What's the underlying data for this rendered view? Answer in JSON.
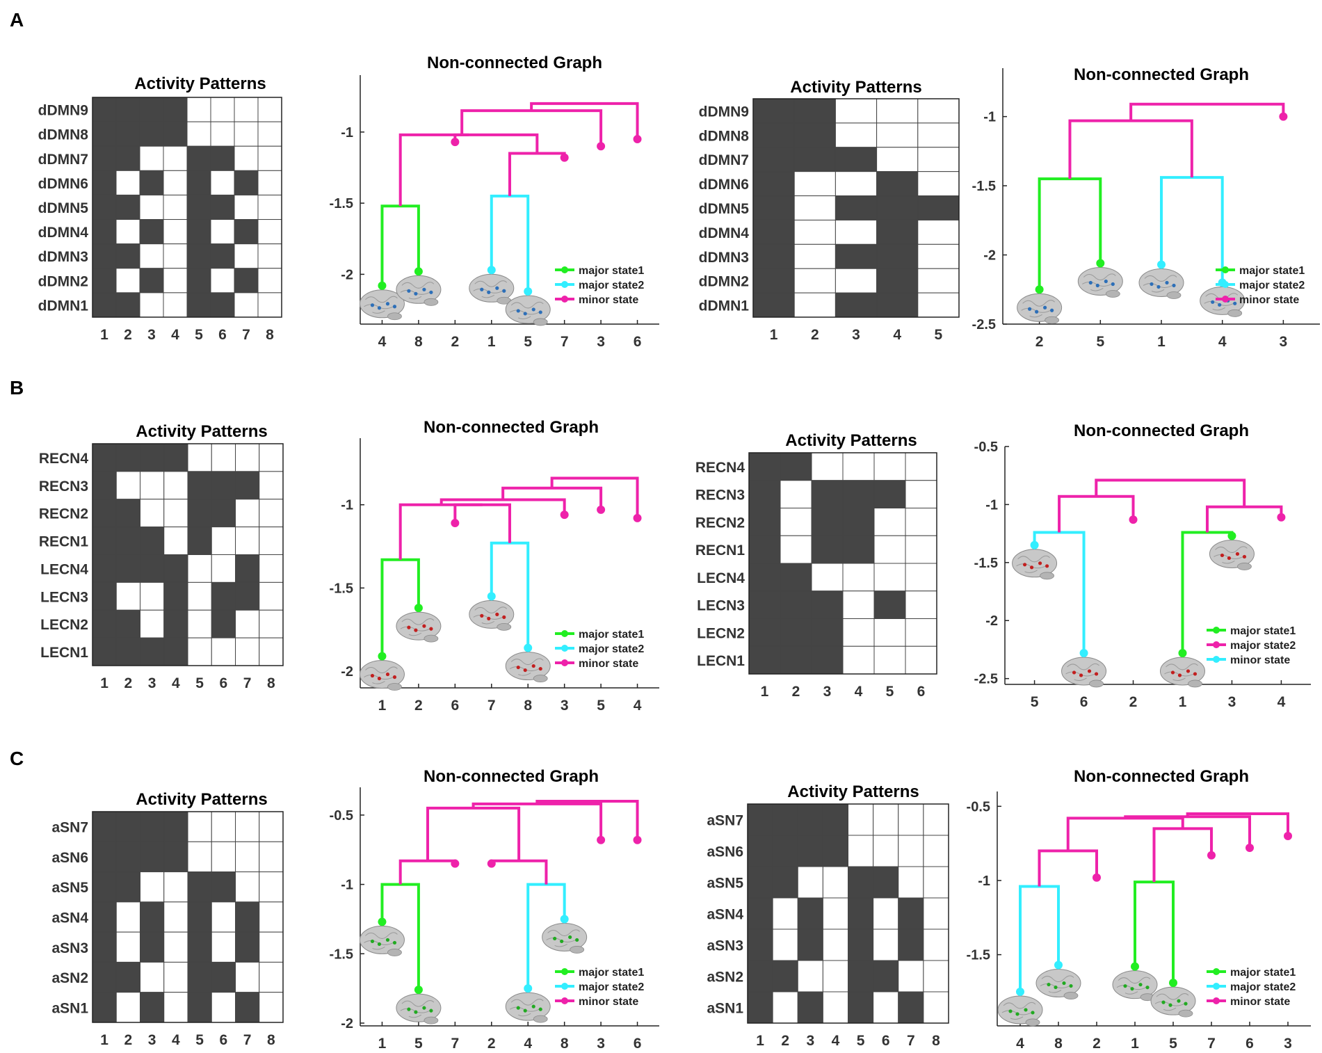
{
  "panel_labels": [
    "A",
    "B",
    "C"
  ],
  "legend_labels_default": [
    "major state1",
    "major state2",
    "minor state"
  ],
  "legend_labels_B_right": [
    "major state1",
    "major state2",
    "minor state"
  ],
  "colors": {
    "major_state1": "#22ee22",
    "major_state2": "#33eeff",
    "minor_state": "#ee22aa",
    "filled_cell": "#454545",
    "grid": "#444444",
    "brain": "#c8c8c8"
  },
  "chart_data": [
    {
      "type": "heatmap",
      "panel": "A",
      "title": "Activity Patterns",
      "rows": [
        "dDMN9",
        "dDMN8",
        "dDMN7",
        "dDMN6",
        "dDMN5",
        "dDMN4",
        "dDMN3",
        "dDMN2",
        "dDMN1"
      ],
      "columns": [
        "1",
        "2",
        "3",
        "4",
        "5",
        "6",
        "7",
        "8"
      ],
      "values": [
        [
          1,
          1,
          1,
          1,
          0,
          0,
          0,
          0
        ],
        [
          1,
          1,
          1,
          1,
          0,
          0,
          0,
          0
        ],
        [
          1,
          1,
          0,
          0,
          1,
          1,
          0,
          0
        ],
        [
          1,
          0,
          1,
          0,
          1,
          0,
          1,
          0
        ],
        [
          1,
          1,
          0,
          0,
          1,
          1,
          0,
          0
        ],
        [
          1,
          0,
          1,
          0,
          1,
          0,
          1,
          0
        ],
        [
          1,
          1,
          0,
          0,
          1,
          1,
          0,
          0
        ],
        [
          1,
          0,
          1,
          0,
          1,
          0,
          1,
          0
        ],
        [
          1,
          1,
          0,
          0,
          1,
          1,
          0,
          0
        ]
      ]
    },
    {
      "type": "dendrogram",
      "panel": "A",
      "title": "Non-connected Graph",
      "ylim": [
        -2.35,
        -0.6
      ],
      "yticks": [
        -1,
        -1.5,
        -2
      ],
      "leaf_labels": [
        "4",
        "8",
        "2",
        "1",
        "5",
        "7",
        "3",
        "6"
      ],
      "leaves": [
        {
          "y": -2.08,
          "c": "g",
          "brain": true
        },
        {
          "y": -1.98,
          "c": "g",
          "brain": true
        },
        {
          "y": -1.07,
          "c": "m",
          "brain": false
        },
        {
          "y": -1.97,
          "c": "c",
          "brain": true
        },
        {
          "y": -2.12,
          "c": "c",
          "brain": true
        },
        {
          "y": -1.18,
          "c": "m",
          "brain": false
        },
        {
          "y": -1.1,
          "c": "m",
          "brain": false
        },
        {
          "y": -1.05,
          "c": "m",
          "brain": false
        }
      ],
      "merges": [
        {
          "a": "L0",
          "b": "L1",
          "y": -1.52,
          "c": "g"
        },
        {
          "a": "L3",
          "b": "L4",
          "y": -1.45,
          "c": "c"
        },
        {
          "a": "M1",
          "b": "L5",
          "y": -1.15,
          "c": "m"
        },
        {
          "a": "M0",
          "b": "M2",
          "y": -1.02,
          "c": "m"
        },
        {
          "a": "M3",
          "b": "L2",
          "y": -1.02,
          "c": "m"
        },
        {
          "a": "M4",
          "b": "L6",
          "y": -0.85,
          "c": "m"
        },
        {
          "a": "M5",
          "b": "L7",
          "y": -0.8,
          "c": "m"
        }
      ],
      "legend": [
        "g",
        "c",
        "m"
      ]
    },
    {
      "type": "heatmap",
      "panel": "A",
      "title": "Activity Patterns",
      "rows": [
        "dDMN9",
        "dDMN8",
        "dDMN7",
        "dDMN6",
        "dDMN5",
        "dDMN4",
        "dDMN3",
        "dDMN2",
        "dDMN1"
      ],
      "columns": [
        "1",
        "2",
        "3",
        "4",
        "5"
      ],
      "values": [
        [
          1,
          1,
          0,
          0,
          0
        ],
        [
          1,
          1,
          0,
          0,
          0
        ],
        [
          1,
          1,
          1,
          0,
          0
        ],
        [
          1,
          0,
          0,
          1,
          0
        ],
        [
          1,
          0,
          1,
          1,
          1
        ],
        [
          1,
          0,
          0,
          1,
          0
        ],
        [
          1,
          0,
          1,
          1,
          0
        ],
        [
          1,
          0,
          0,
          1,
          0
        ],
        [
          1,
          0,
          1,
          1,
          0
        ]
      ]
    },
    {
      "type": "dendrogram",
      "panel": "A",
      "title": "Non-connected Graph",
      "ylim": [
        -2.5,
        -0.65
      ],
      "yticks": [
        -1,
        -1.5,
        -2,
        -2.5
      ],
      "leaf_labels": [
        "2",
        "5",
        "1",
        "4",
        "3"
      ],
      "leaves": [
        {
          "y": -2.25,
          "c": "g",
          "brain": true
        },
        {
          "y": -2.06,
          "c": "g",
          "brain": true
        },
        {
          "y": -2.07,
          "c": "c",
          "brain": true
        },
        {
          "y": -2.2,
          "c": "c",
          "brain": true
        },
        {
          "y": -1.0,
          "c": "m",
          "brain": false
        }
      ],
      "merges": [
        {
          "a": "L0",
          "b": "L1",
          "y": -1.45,
          "c": "g"
        },
        {
          "a": "L2",
          "b": "L3",
          "y": -1.44,
          "c": "c"
        },
        {
          "a": "M0",
          "b": "M1",
          "y": -1.03,
          "c": "m"
        },
        {
          "a": "M2",
          "b": "L4",
          "y": -0.91,
          "c": "m"
        }
      ],
      "legend": [
        "g",
        "c",
        "m"
      ]
    },
    {
      "type": "heatmap",
      "panel": "B",
      "title": "Activity Patterns",
      "rows": [
        "RECN4",
        "RECN3",
        "RECN2",
        "RECN1",
        "LECN4",
        "LECN3",
        "LECN2",
        "LECN1"
      ],
      "columns": [
        "1",
        "2",
        "3",
        "4",
        "5",
        "6",
        "7",
        "8"
      ],
      "values": [
        [
          1,
          1,
          1,
          1,
          0,
          0,
          0,
          0
        ],
        [
          1,
          0,
          0,
          0,
          1,
          1,
          1,
          0
        ],
        [
          1,
          1,
          0,
          0,
          1,
          1,
          0,
          0
        ],
        [
          1,
          1,
          1,
          0,
          1,
          0,
          0,
          0
        ],
        [
          1,
          1,
          1,
          1,
          0,
          0,
          1,
          0
        ],
        [
          1,
          0,
          0,
          1,
          0,
          1,
          1,
          0
        ],
        [
          1,
          1,
          0,
          1,
          0,
          1,
          0,
          0
        ],
        [
          1,
          1,
          1,
          1,
          0,
          0,
          0,
          0
        ]
      ]
    },
    {
      "type": "dendrogram",
      "panel": "B",
      "title": "Non-connected Graph",
      "ylim": [
        -2.1,
        -0.6
      ],
      "yticks": [
        -1,
        -1.5,
        -2
      ],
      "leaf_labels": [
        "1",
        "2",
        "6",
        "7",
        "8",
        "3",
        "5",
        "4"
      ],
      "leaves": [
        {
          "y": -1.91,
          "c": "g",
          "brain": true
        },
        {
          "y": -1.62,
          "c": "g",
          "brain": true
        },
        {
          "y": -1.11,
          "c": "m",
          "brain": false
        },
        {
          "y": -1.55,
          "c": "c",
          "brain": true
        },
        {
          "y": -1.86,
          "c": "c",
          "brain": true
        },
        {
          "y": -1.06,
          "c": "m",
          "brain": false
        },
        {
          "y": -1.03,
          "c": "m",
          "brain": false
        },
        {
          "y": -1.08,
          "c": "m",
          "brain": false
        }
      ],
      "merges": [
        {
          "a": "L0",
          "b": "L1",
          "y": -1.33,
          "c": "g"
        },
        {
          "a": "L3",
          "b": "L4",
          "y": -1.23,
          "c": "c"
        },
        {
          "a": "M1",
          "b": "L2",
          "y": -1.0,
          "c": "m"
        },
        {
          "a": "M0",
          "b": "M2",
          "y": -1.0,
          "c": "m"
        },
        {
          "a": "M3",
          "b": "L5",
          "y": -0.97,
          "c": "m"
        },
        {
          "a": "M4",
          "b": "L6",
          "y": -0.9,
          "c": "m"
        },
        {
          "a": "M5",
          "b": "L7",
          "y": -0.84,
          "c": "m"
        }
      ],
      "legend": [
        "g",
        "c",
        "m"
      ]
    },
    {
      "type": "heatmap",
      "panel": "B",
      "title": "Activity Patterns",
      "rows": [
        "RECN4",
        "RECN3",
        "RECN2",
        "RECN1",
        "LECN4",
        "LECN3",
        "LECN2",
        "LECN1"
      ],
      "columns": [
        "1",
        "2",
        "3",
        "4",
        "5",
        "6"
      ],
      "values": [
        [
          1,
          1,
          0,
          0,
          0,
          0
        ],
        [
          1,
          0,
          1,
          1,
          1,
          0
        ],
        [
          1,
          0,
          1,
          1,
          0,
          0
        ],
        [
          1,
          0,
          1,
          1,
          0,
          0
        ],
        [
          1,
          1,
          0,
          0,
          0,
          0
        ],
        [
          1,
          1,
          1,
          0,
          1,
          0
        ],
        [
          1,
          1,
          1,
          0,
          0,
          0
        ],
        [
          1,
          1,
          1,
          0,
          0,
          0
        ]
      ]
    },
    {
      "type": "dendrogram",
      "panel": "B",
      "title": "Non-connected Graph",
      "ylim": [
        -2.55,
        -0.5
      ],
      "yticks": [
        -0.5,
        -1,
        -1.5,
        -2,
        -2.5
      ],
      "leaf_labels": [
        "5",
        "6",
        "2",
        "1",
        "3",
        "4"
      ],
      "leaves": [
        {
          "y": -1.35,
          "c": "c",
          "brain": true
        },
        {
          "y": -2.28,
          "c": "c",
          "brain": true
        },
        {
          "y": -1.13,
          "c": "m",
          "brain": false
        },
        {
          "y": -2.28,
          "c": "g",
          "brain": true
        },
        {
          "y": -1.27,
          "c": "g",
          "brain": true
        },
        {
          "y": -1.11,
          "c": "m",
          "brain": false
        }
      ],
      "merges": [
        {
          "a": "L0",
          "b": "L1",
          "y": -1.24,
          "c": "c"
        },
        {
          "a": "L3",
          "b": "L4",
          "y": -1.24,
          "c": "g"
        },
        {
          "a": "M0",
          "b": "L2",
          "y": -0.93,
          "c": "m"
        },
        {
          "a": "M1",
          "b": "L5",
          "y": -1.02,
          "c": "m"
        },
        {
          "a": "M2",
          "b": "M3",
          "y": -0.79,
          "c": "m"
        }
      ],
      "legend": [
        "g",
        "m",
        "c"
      ]
    },
    {
      "type": "heatmap",
      "panel": "C",
      "title": "Activity Patterns",
      "rows": [
        "aSN7",
        "aSN6",
        "aSN5",
        "aSN4",
        "aSN3",
        "aSN2",
        "aSN1"
      ],
      "columns": [
        "1",
        "2",
        "3",
        "4",
        "5",
        "6",
        "7",
        "8"
      ],
      "values": [
        [
          1,
          1,
          1,
          1,
          0,
          0,
          0,
          0
        ],
        [
          1,
          1,
          1,
          1,
          0,
          0,
          0,
          0
        ],
        [
          1,
          1,
          0,
          0,
          1,
          1,
          0,
          0
        ],
        [
          1,
          0,
          1,
          0,
          1,
          0,
          1,
          0
        ],
        [
          1,
          0,
          1,
          0,
          1,
          0,
          1,
          0
        ],
        [
          1,
          1,
          0,
          0,
          1,
          1,
          0,
          0
        ],
        [
          1,
          0,
          1,
          0,
          1,
          0,
          1,
          0
        ]
      ]
    },
    {
      "type": "dendrogram",
      "panel": "C",
      "title": "Non-connected Graph",
      "ylim": [
        -2.02,
        -0.3
      ],
      "yticks": [
        -0.5,
        -1,
        -1.5,
        -2
      ],
      "leaf_labels": [
        "1",
        "5",
        "7",
        "2",
        "4",
        "8",
        "3",
        "6"
      ],
      "leaves": [
        {
          "y": -1.27,
          "c": "g",
          "brain": true
        },
        {
          "y": -1.76,
          "c": "g",
          "brain": true
        },
        {
          "y": -0.85,
          "c": "m",
          "brain": false
        },
        {
          "y": -0.85,
          "c": "m",
          "brain": false
        },
        {
          "y": -1.75,
          "c": "c",
          "brain": true
        },
        {
          "y": -1.25,
          "c": "c",
          "brain": true
        },
        {
          "y": -0.68,
          "c": "m",
          "brain": false
        },
        {
          "y": -0.68,
          "c": "m",
          "brain": false
        }
      ],
      "merges": [
        {
          "a": "L0",
          "b": "L1",
          "y": -1.0,
          "c": "g"
        },
        {
          "a": "L4",
          "b": "L5",
          "y": -1.0,
          "c": "c"
        },
        {
          "a": "M0",
          "b": "L2",
          "y": -0.83,
          "c": "m"
        },
        {
          "a": "L3",
          "b": "M1",
          "y": -0.83,
          "c": "m"
        },
        {
          "a": "M2",
          "b": "M3",
          "y": -0.45,
          "c": "m"
        },
        {
          "a": "M4",
          "b": "L6",
          "y": -0.42,
          "c": "m"
        },
        {
          "a": "M5",
          "b": "L7",
          "y": -0.4,
          "c": "m"
        }
      ],
      "legend": [
        "g",
        "c",
        "m"
      ]
    },
    {
      "type": "heatmap",
      "panel": "C",
      "title": "Activity Patterns",
      "rows": [
        "aSN7",
        "aSN6",
        "aSN5",
        "aSN4",
        "aSN3",
        "aSN2",
        "aSN1"
      ],
      "columns": [
        "1",
        "2",
        "3",
        "4",
        "5",
        "6",
        "7",
        "8"
      ],
      "values": [
        [
          1,
          1,
          1,
          1,
          0,
          0,
          0,
          0
        ],
        [
          1,
          1,
          1,
          1,
          0,
          0,
          0,
          0
        ],
        [
          1,
          1,
          0,
          0,
          1,
          1,
          0,
          0
        ],
        [
          1,
          0,
          1,
          0,
          1,
          0,
          1,
          0
        ],
        [
          1,
          0,
          1,
          0,
          1,
          0,
          1,
          0
        ],
        [
          1,
          1,
          0,
          0,
          1,
          1,
          0,
          0
        ],
        [
          1,
          0,
          1,
          0,
          1,
          0,
          1,
          0
        ]
      ]
    },
    {
      "type": "dendrogram",
      "panel": "C",
      "title": "Non-connected Graph",
      "ylim": [
        -1.98,
        -0.4
      ],
      "yticks": [
        -0.5,
        -1,
        -1.5
      ],
      "leaf_labels": [
        "4",
        "8",
        "2",
        "1",
        "5",
        "7",
        "6",
        "3"
      ],
      "leaves": [
        {
          "y": -1.75,
          "c": "c",
          "brain": true
        },
        {
          "y": -1.57,
          "c": "c",
          "brain": true
        },
        {
          "y": -0.98,
          "c": "m",
          "brain": false
        },
        {
          "y": -1.58,
          "c": "g",
          "brain": true
        },
        {
          "y": -1.69,
          "c": "g",
          "brain": true
        },
        {
          "y": -0.83,
          "c": "m",
          "brain": false
        },
        {
          "y": -0.78,
          "c": "m",
          "brain": false
        },
        {
          "y": -0.7,
          "c": "m",
          "brain": false
        }
      ],
      "merges": [
        {
          "a": "L0",
          "b": "L1",
          "y": -1.04,
          "c": "c"
        },
        {
          "a": "L3",
          "b": "L4",
          "y": -1.01,
          "c": "g"
        },
        {
          "a": "M0",
          "b": "L2",
          "y": -0.8,
          "c": "m"
        },
        {
          "a": "M1",
          "b": "L5",
          "y": -0.65,
          "c": "m"
        },
        {
          "a": "M2",
          "b": "M3",
          "y": -0.58,
          "c": "m"
        },
        {
          "a": "M4",
          "b": "L6",
          "y": -0.57,
          "c": "m"
        },
        {
          "a": "M5",
          "b": "L7",
          "y": -0.55,
          "c": "m"
        }
      ],
      "legend": [
        "g",
        "c",
        "m"
      ]
    }
  ]
}
